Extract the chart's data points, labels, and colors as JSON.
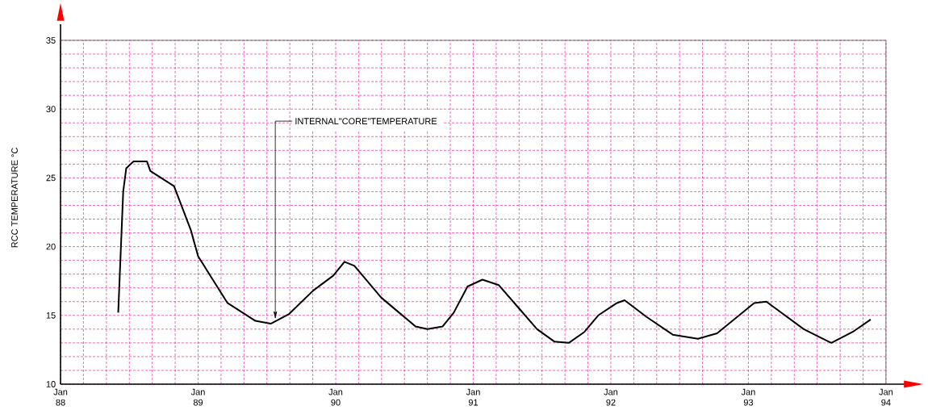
{
  "chart_data": {
    "type": "line",
    "ylabel": "RCC TEMPERATURE °C",
    "x": [
      "1988-06-02",
      "1988-06-15",
      "1988-06-23",
      "1988-07-12",
      "1988-08-17",
      "1988-08-26",
      "1988-10-28",
      "1988-12-12",
      "1989-01-01",
      "1989-03-18",
      "1989-06-01",
      "1989-07-11",
      "1989-08-29",
      "1989-11-02",
      "1989-12-25",
      "1990-01-24",
      "1990-02-20",
      "1990-04-30",
      "1990-06-17",
      "1990-07-30",
      "1990-09-01",
      "1990-10-11",
      "1990-11-10",
      "1990-12-16",
      "1991-01-25",
      "1991-03-08",
      "1991-05-01",
      "1991-06-18",
      "1991-08-03",
      "1991-09-11",
      "1991-10-22",
      "1991-11-28",
      "1992-01-17",
      "1992-02-07",
      "1992-04-04",
      "1992-06-13",
      "1992-08-19",
      "1992-10-09",
      "1993-01-16",
      "1993-02-18",
      "1993-05-26",
      "1993-08-08",
      "1993-10-04",
      "1993-11-21"
    ],
    "values": [
      15.2,
      24.0,
      25.7,
      26.2,
      26.2,
      25.5,
      24.4,
      21.2,
      19.3,
      15.9,
      14.6,
      14.4,
      15.1,
      16.8,
      17.9,
      18.9,
      18.6,
      16.3,
      15.2,
      14.2,
      14.0,
      14.2,
      15.2,
      17.1,
      17.6,
      17.2,
      15.5,
      14.0,
      13.1,
      13.0,
      13.8,
      15.0,
      15.9,
      16.1,
      14.9,
      13.6,
      13.3,
      13.7,
      15.9,
      16.0,
      14.0,
      13.0,
      13.8,
      14.7
    ],
    "color": "#000000",
    "xlim": [
      "1988-01",
      "1994-01"
    ],
    "ylim": [
      10,
      35
    ],
    "xticks": [
      {
        "value": "1988-01",
        "label": "Jan 88"
      },
      {
        "value": "1989-01",
        "label": "Jan 89"
      },
      {
        "value": "1990-01",
        "label": "Jan 90"
      },
      {
        "value": "1991-01",
        "label": "Jan 91"
      },
      {
        "value": "1992-01",
        "label": "Jan 92"
      },
      {
        "value": "1993-01",
        "label": "Jan 93"
      },
      {
        "value": "1994-01",
        "label": "Jan 94"
      }
    ],
    "yticks": [
      10,
      15,
      20,
      25,
      30,
      35
    ],
    "grid": true,
    "annotations": [
      {
        "text": "INTERNAL\"CORE\"TEMPERATURE",
        "x": "1989-07-23",
        "y": 14.7
      }
    ]
  }
}
